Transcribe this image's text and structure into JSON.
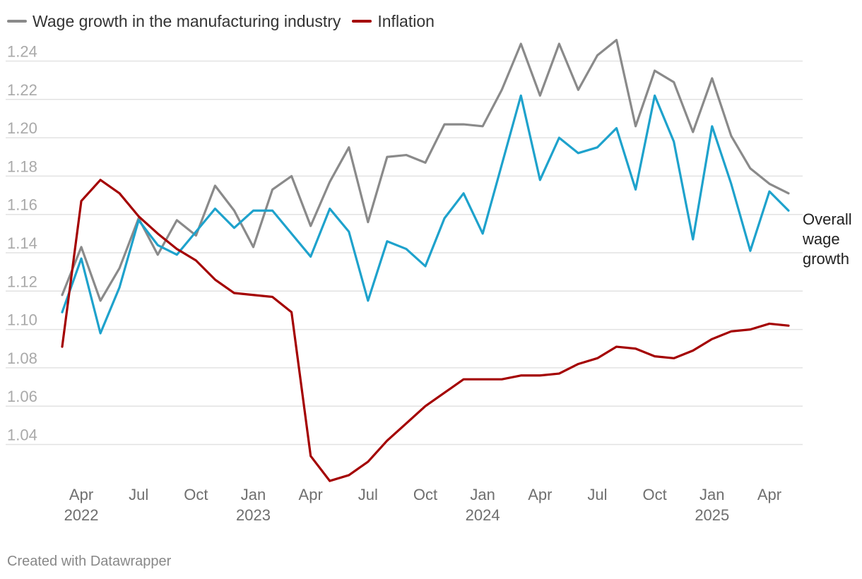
{
  "colors": {
    "wage_manufacturing": "#8a8a8a",
    "overall_wage": "#1ea2cc",
    "inflation": "#a40000",
    "grid": "#e2e2e2",
    "tick_text": "#a9a9a9",
    "x_text": "#6f6f6f",
    "annotation_text": "#222222"
  },
  "legend": {
    "items": [
      {
        "label": "Wage growth in the manufacturing industry",
        "color": "#8a8a8a"
      },
      {
        "label": "Inflation",
        "color": "#a40000"
      }
    ]
  },
  "footer": {
    "credit": "Created with Datawrapper"
  },
  "chart_data": {
    "type": "line",
    "title": "",
    "xlabel": "",
    "ylabel": "",
    "ylim": [
      1.02,
      1.26
    ],
    "yticks": [
      "1.04",
      "1.06",
      "1.08",
      "1.10",
      "1.12",
      "1.14",
      "1.16",
      "1.18",
      "1.20",
      "1.22",
      "1.24"
    ],
    "x": [
      "2022-03",
      "2022-04",
      "2022-05",
      "2022-06",
      "2022-07",
      "2022-08",
      "2022-09",
      "2022-10",
      "2022-11",
      "2022-12",
      "2023-01",
      "2023-02",
      "2023-03",
      "2023-04",
      "2023-05",
      "2023-06",
      "2023-07",
      "2023-08",
      "2023-09",
      "2023-10",
      "2023-11",
      "2023-12",
      "2024-01",
      "2024-02",
      "2024-03",
      "2024-04",
      "2024-05",
      "2024-06",
      "2024-07",
      "2024-08",
      "2024-09",
      "2024-10",
      "2024-11",
      "2024-12",
      "2025-01",
      "2025-02",
      "2025-03",
      "2025-04",
      "2025-05"
    ],
    "xticks": [
      {
        "label": "Apr",
        "sub": "2022",
        "index": 1
      },
      {
        "label": "Jul",
        "sub": "",
        "index": 4
      },
      {
        "label": "Oct",
        "sub": "",
        "index": 7
      },
      {
        "label": "Jan",
        "sub": "2023",
        "index": 10
      },
      {
        "label": "Apr",
        "sub": "",
        "index": 13
      },
      {
        "label": "Jul",
        "sub": "",
        "index": 16
      },
      {
        "label": "Oct",
        "sub": "",
        "index": 19
      },
      {
        "label": "Jan",
        "sub": "2024",
        "index": 22
      },
      {
        "label": "Apr",
        "sub": "",
        "index": 25
      },
      {
        "label": "Jul",
        "sub": "",
        "index": 28
      },
      {
        "label": "Oct",
        "sub": "",
        "index": 31
      },
      {
        "label": "Jan",
        "sub": "2025",
        "index": 34
      },
      {
        "label": "Apr",
        "sub": "",
        "index": 37
      }
    ],
    "series": [
      {
        "name": "Wage growth in the manufacturing industry",
        "color": "#8a8a8a",
        "values": [
          1.118,
          1.143,
          1.115,
          1.132,
          1.158,
          1.139,
          1.157,
          1.149,
          1.175,
          1.162,
          1.143,
          1.173,
          1.18,
          1.154,
          1.177,
          1.195,
          1.156,
          1.19,
          1.191,
          1.187,
          1.207,
          1.207,
          1.206,
          1.225,
          1.249,
          1.222,
          1.249,
          1.225,
          1.243,
          1.251,
          1.206,
          1.235,
          1.229,
          1.203,
          1.231,
          1.201,
          1.184,
          1.176,
          1.171
        ]
      },
      {
        "name": "Overall wage growth",
        "color": "#1ea2cc",
        "values": [
          1.109,
          1.137,
          1.098,
          1.122,
          1.157,
          1.144,
          1.139,
          1.151,
          1.163,
          1.153,
          1.162,
          1.162,
          1.15,
          1.138,
          1.163,
          1.151,
          1.115,
          1.146,
          1.142,
          1.133,
          1.158,
          1.171,
          1.15,
          1.186,
          1.222,
          1.178,
          1.2,
          1.192,
          1.195,
          1.205,
          1.173,
          1.222,
          1.198,
          1.147,
          1.206,
          1.176,
          1.141,
          1.172,
          1.162
        ]
      },
      {
        "name": "Inflation",
        "color": "#a40000",
        "values": [
          1.091,
          1.167,
          1.178,
          1.171,
          1.159,
          1.15,
          1.142,
          1.136,
          1.126,
          1.119,
          1.118,
          1.117,
          1.109,
          1.034,
          1.021,
          1.024,
          1.031,
          1.042,
          1.051,
          1.06,
          1.067,
          1.074,
          1.074,
          1.074,
          1.076,
          1.076,
          1.077,
          1.082,
          1.085,
          1.091,
          1.09,
          1.086,
          1.085,
          1.089,
          1.095,
          1.099,
          1.1,
          1.103,
          1.102
        ]
      }
    ],
    "annotations": [
      {
        "lines": [
          "Overall",
          "wage",
          "growth"
        ],
        "series": "Overall wage growth"
      }
    ]
  }
}
